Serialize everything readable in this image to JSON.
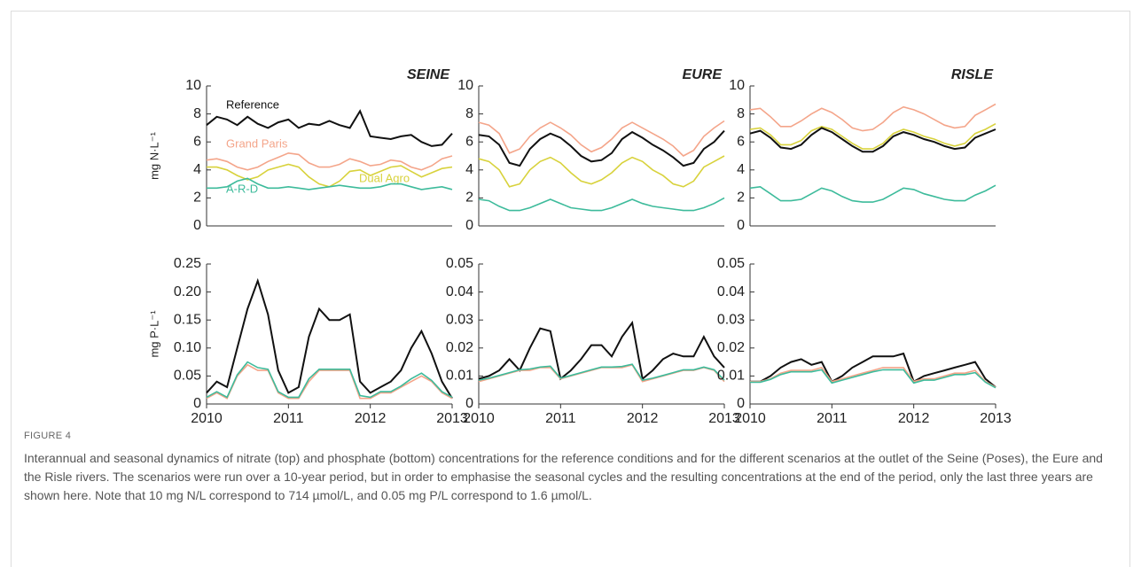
{
  "figure": {
    "label": "FIGURE 4",
    "caption": "Interannual and seasonal dynamics of nitrate (top) and phosphate (bottom) concentrations for the reference conditions and for the different scenarios at the outlet of the Seine (Poses), the Eure and the Risle rivers. The scenarios were run over a 10-year period, but in order to emphasise the seasonal cycles and the resulting concentrations at the end of the period, only the last three years are shown here. Note that 10 mg N/L correspond to 714 µmol/L, and 0.05 mg P/L correspond to 1.6 µmol/L."
  },
  "chart_data": [
    {
      "type": "line",
      "title": "SEINE",
      "ylabel": "mg N·L⁻¹",
      "x": [
        2010,
        2010.125,
        2010.25,
        2010.375,
        2010.5,
        2010.625,
        2010.75,
        2010.875,
        2011,
        2011.125,
        2011.25,
        2011.375,
        2011.5,
        2011.625,
        2011.75,
        2011.875,
        2012,
        2012.125,
        2012.25,
        2012.375,
        2012.5,
        2012.625,
        2012.75,
        2012.875,
        2013
      ],
      "xlim": [
        2010,
        2013
      ],
      "ylim": [
        0,
        10
      ],
      "yticks": [
        0,
        2,
        4,
        6,
        8,
        10
      ],
      "series": [
        {
          "name": "Reference",
          "color": "#111111",
          "values": [
            7.2,
            7.8,
            7.6,
            7.2,
            7.8,
            7.3,
            7.0,
            7.4,
            7.6,
            7.0,
            7.3,
            7.2,
            7.5,
            7.2,
            7.0,
            8.2,
            6.4,
            6.3,
            6.2,
            6.4,
            6.5,
            6.0,
            5.7,
            5.8,
            6.6
          ]
        },
        {
          "name": "Grand Paris",
          "color": "#f4a58a",
          "values": [
            4.7,
            4.8,
            4.6,
            4.2,
            4.0,
            4.2,
            4.6,
            4.9,
            5.2,
            5.1,
            4.5,
            4.2,
            4.2,
            4.4,
            4.8,
            4.6,
            4.3,
            4.4,
            4.7,
            4.6,
            4.2,
            4.0,
            4.3,
            4.8,
            5.0
          ]
        },
        {
          "name": "Dual Agro",
          "color": "#d8d23c",
          "values": [
            4.2,
            4.2,
            4.0,
            3.6,
            3.3,
            3.5,
            4.0,
            4.2,
            4.4,
            4.2,
            3.5,
            3.0,
            2.8,
            3.2,
            3.9,
            4.0,
            3.6,
            3.9,
            4.2,
            4.3,
            3.9,
            3.5,
            3.8,
            4.1,
            4.2
          ]
        },
        {
          "name": "A-R-D",
          "color": "#3dbb9b",
          "values": [
            2.7,
            2.7,
            2.8,
            3.2,
            3.4,
            3.0,
            2.7,
            2.7,
            2.8,
            2.7,
            2.6,
            2.7,
            2.8,
            2.9,
            2.8,
            2.7,
            2.7,
            2.8,
            3.0,
            3.0,
            2.8,
            2.6,
            2.7,
            2.8,
            2.6
          ]
        }
      ]
    },
    {
      "type": "line",
      "title": "EURE",
      "x": [
        2010,
        2010.125,
        2010.25,
        2010.375,
        2010.5,
        2010.625,
        2010.75,
        2010.875,
        2011,
        2011.125,
        2011.25,
        2011.375,
        2011.5,
        2011.625,
        2011.75,
        2011.875,
        2012,
        2012.125,
        2012.25,
        2012.375,
        2012.5,
        2012.625,
        2012.75,
        2012.875,
        2013
      ],
      "xlim": [
        2010,
        2013
      ],
      "ylim": [
        0,
        10
      ],
      "yticks": [
        0,
        2,
        4,
        6,
        8,
        10
      ],
      "series": [
        {
          "color": "#111111",
          "values": [
            6.5,
            6.4,
            5.8,
            4.5,
            4.3,
            5.5,
            6.2,
            6.6,
            6.3,
            5.7,
            5.0,
            4.6,
            4.7,
            5.2,
            6.2,
            6.7,
            6.3,
            5.8,
            5.4,
            4.9,
            4.3,
            4.5,
            5.5,
            6.0,
            6.8
          ]
        },
        {
          "color": "#f4a58a",
          "values": [
            7.4,
            7.2,
            6.6,
            5.2,
            5.5,
            6.4,
            7.0,
            7.4,
            7.0,
            6.5,
            5.8,
            5.3,
            5.6,
            6.2,
            7.0,
            7.4,
            7.0,
            6.6,
            6.2,
            5.7,
            5.0,
            5.4,
            6.4,
            7.0,
            7.5
          ]
        },
        {
          "color": "#d8d23c",
          "values": [
            4.8,
            4.6,
            4.0,
            2.8,
            3.0,
            4.0,
            4.6,
            4.9,
            4.5,
            3.8,
            3.2,
            3.0,
            3.3,
            3.8,
            4.5,
            4.9,
            4.6,
            4.0,
            3.6,
            3.0,
            2.8,
            3.2,
            4.2,
            4.6,
            5.0
          ]
        },
        {
          "color": "#3dbb9b",
          "values": [
            1.9,
            1.8,
            1.4,
            1.1,
            1.1,
            1.3,
            1.6,
            1.9,
            1.6,
            1.3,
            1.2,
            1.1,
            1.1,
            1.3,
            1.6,
            1.9,
            1.6,
            1.4,
            1.3,
            1.2,
            1.1,
            1.1,
            1.3,
            1.6,
            2.0
          ]
        }
      ]
    },
    {
      "type": "line",
      "title": "RISLE",
      "x": [
        2010,
        2010.125,
        2010.25,
        2010.375,
        2010.5,
        2010.625,
        2010.75,
        2010.875,
        2011,
        2011.125,
        2011.25,
        2011.375,
        2011.5,
        2011.625,
        2011.75,
        2011.875,
        2012,
        2012.125,
        2012.25,
        2012.375,
        2012.5,
        2012.625,
        2012.75,
        2012.875,
        2013
      ],
      "xlim": [
        2010,
        2013
      ],
      "ylim": [
        0,
        10
      ],
      "yticks": [
        0,
        2,
        4,
        6,
        8,
        10
      ],
      "series": [
        {
          "color": "#f4a58a",
          "values": [
            8.3,
            8.4,
            7.8,
            7.1,
            7.1,
            7.5,
            8.0,
            8.4,
            8.1,
            7.6,
            7.0,
            6.8,
            6.9,
            7.4,
            8.1,
            8.5,
            8.3,
            8.0,
            7.6,
            7.2,
            7.0,
            7.1,
            7.9,
            8.3,
            8.7
          ]
        },
        {
          "color": "#d8d23c",
          "values": [
            6.9,
            7.0,
            6.5,
            5.8,
            5.8,
            6.1,
            6.8,
            7.1,
            6.9,
            6.4,
            5.9,
            5.5,
            5.5,
            5.9,
            6.6,
            6.9,
            6.7,
            6.4,
            6.2,
            5.9,
            5.7,
            5.9,
            6.6,
            6.9,
            7.3
          ]
        },
        {
          "color": "#111111",
          "values": [
            6.6,
            6.8,
            6.3,
            5.6,
            5.5,
            5.8,
            6.5,
            7.0,
            6.7,
            6.2,
            5.7,
            5.3,
            5.3,
            5.7,
            6.4,
            6.7,
            6.5,
            6.2,
            6.0,
            5.7,
            5.5,
            5.6,
            6.3,
            6.6,
            6.9
          ]
        },
        {
          "color": "#3dbb9b",
          "values": [
            2.7,
            2.8,
            2.3,
            1.8,
            1.8,
            1.9,
            2.3,
            2.7,
            2.5,
            2.1,
            1.8,
            1.7,
            1.7,
            1.9,
            2.3,
            2.7,
            2.6,
            2.3,
            2.1,
            1.9,
            1.8,
            1.8,
            2.2,
            2.5,
            2.9
          ]
        }
      ]
    },
    {
      "type": "line",
      "ylabel": "mg P·L⁻¹",
      "x": [
        2010,
        2010.125,
        2010.25,
        2010.375,
        2010.5,
        2010.625,
        2010.75,
        2010.875,
        2011,
        2011.125,
        2011.25,
        2011.375,
        2011.5,
        2011.625,
        2011.75,
        2011.875,
        2012,
        2012.125,
        2012.25,
        2012.375,
        2012.5,
        2012.625,
        2012.75,
        2012.875,
        2013
      ],
      "xlim": [
        2010,
        2013
      ],
      "xticks": [
        2010,
        2011,
        2012,
        2013
      ],
      "ylim": [
        0,
        0.25
      ],
      "yticks": [
        0,
        0.05,
        {
          "value": 0.1,
          "label": "0.10"
        },
        0.15,
        {
          "value": 0.2,
          "label": "0.20"
        },
        0.25
      ],
      "series": [
        {
          "color": "#111111",
          "values": [
            0.02,
            0.04,
            0.03,
            0.1,
            0.17,
            0.22,
            0.16,
            0.06,
            0.02,
            0.03,
            0.12,
            0.17,
            0.15,
            0.15,
            0.16,
            0.04,
            0.02,
            0.03,
            0.04,
            0.06,
            0.1,
            0.13,
            0.09,
            0.04,
            0.01
          ]
        },
        {
          "color": "#f4a58a",
          "values": [
            0.01,
            0.02,
            0.01,
            0.05,
            0.07,
            0.06,
            0.06,
            0.02,
            0.01,
            0.01,
            0.04,
            0.06,
            0.06,
            0.06,
            0.06,
            0.01,
            0.01,
            0.02,
            0.02,
            0.03,
            0.04,
            0.05,
            0.04,
            0.02,
            0.01
          ]
        },
        {
          "color": "#3dbb9b",
          "values": [
            0.012,
            0.022,
            0.012,
            0.052,
            0.075,
            0.065,
            0.062,
            0.022,
            0.012,
            0.012,
            0.045,
            0.062,
            0.062,
            0.062,
            0.062,
            0.015,
            0.012,
            0.022,
            0.022,
            0.032,
            0.045,
            0.055,
            0.042,
            0.022,
            0.012
          ]
        }
      ]
    },
    {
      "type": "line",
      "x": [
        2010,
        2010.125,
        2010.25,
        2010.375,
        2010.5,
        2010.625,
        2010.75,
        2010.875,
        2011,
        2011.125,
        2011.25,
        2011.375,
        2011.5,
        2011.625,
        2011.75,
        2011.875,
        2012,
        2012.125,
        2012.25,
        2012.375,
        2012.5,
        2012.625,
        2012.75,
        2012.875,
        2013
      ],
      "xlim": [
        2010,
        2013
      ],
      "xticks": [
        2010,
        2011,
        2012,
        2013
      ],
      "ylim": [
        0,
        0.05
      ],
      "yticks": [
        0,
        0.01,
        0.02,
        0.03,
        0.04,
        0.05
      ],
      "series": [
        {
          "color": "#111111",
          "values": [
            0.009,
            0.01,
            0.012,
            0.016,
            0.012,
            0.02,
            0.027,
            0.026,
            0.009,
            0.012,
            0.016,
            0.021,
            0.021,
            0.017,
            0.024,
            0.029,
            0.009,
            0.012,
            0.016,
            0.018,
            0.017,
            0.017,
            0.024,
            0.017,
            0.013
          ]
        },
        {
          "color": "#f4a58a",
          "values": [
            0.008,
            0.009,
            0.01,
            0.011,
            0.012,
            0.012,
            0.013,
            0.013,
            0.009,
            0.01,
            0.011,
            0.012,
            0.013,
            0.013,
            0.013,
            0.014,
            0.008,
            0.009,
            0.01,
            0.011,
            0.012,
            0.012,
            0.013,
            0.012,
            0.008
          ]
        },
        {
          "color": "#3dbb9b",
          "values": [
            0.0085,
            0.0092,
            0.0102,
            0.0112,
            0.0122,
            0.0125,
            0.0132,
            0.0135,
            0.0092,
            0.0102,
            0.0112,
            0.0122,
            0.0132,
            0.0132,
            0.0134,
            0.0142,
            0.0085,
            0.0092,
            0.0102,
            0.0112,
            0.0122,
            0.0122,
            0.0132,
            0.0122,
            0.0085
          ]
        }
      ]
    },
    {
      "type": "line",
      "x": [
        2010,
        2010.125,
        2010.25,
        2010.375,
        2010.5,
        2010.625,
        2010.75,
        2010.875,
        2011,
        2011.125,
        2011.25,
        2011.375,
        2011.5,
        2011.625,
        2011.75,
        2011.875,
        2012,
        2012.125,
        2012.25,
        2012.375,
        2012.5,
        2012.625,
        2012.75,
        2012.875,
        2013
      ],
      "xlim": [
        2010,
        2013
      ],
      "xticks": [
        2010,
        2011,
        2012,
        2013
      ],
      "ylim": [
        0,
        0.05
      ],
      "yticks": [
        0,
        0.01,
        0.02,
        0.03,
        0.04,
        0.05
      ],
      "series": [
        {
          "color": "#111111",
          "values": [
            0.008,
            0.008,
            0.01,
            0.013,
            0.015,
            0.016,
            0.014,
            0.015,
            0.008,
            0.01,
            0.013,
            0.015,
            0.017,
            0.017,
            0.017,
            0.018,
            0.008,
            0.01,
            0.011,
            0.012,
            0.013,
            0.014,
            0.015,
            0.009,
            0.006
          ]
        },
        {
          "color": "#f4a58a",
          "values": [
            0.008,
            0.008,
            0.009,
            0.011,
            0.012,
            0.012,
            0.012,
            0.013,
            0.008,
            0.009,
            0.01,
            0.011,
            0.012,
            0.013,
            0.013,
            0.013,
            0.008,
            0.009,
            0.009,
            0.01,
            0.011,
            0.011,
            0.012,
            0.008,
            0.006
          ]
        },
        {
          "color": "#3dbb9b",
          "values": [
            0.0078,
            0.0078,
            0.0088,
            0.0105,
            0.0115,
            0.0115,
            0.0115,
            0.0122,
            0.0075,
            0.0085,
            0.0095,
            0.0105,
            0.0115,
            0.0122,
            0.0122,
            0.0122,
            0.0075,
            0.0085,
            0.0085,
            0.0095,
            0.0105,
            0.0105,
            0.0112,
            0.0078,
            0.0058
          ]
        }
      ]
    }
  ]
}
